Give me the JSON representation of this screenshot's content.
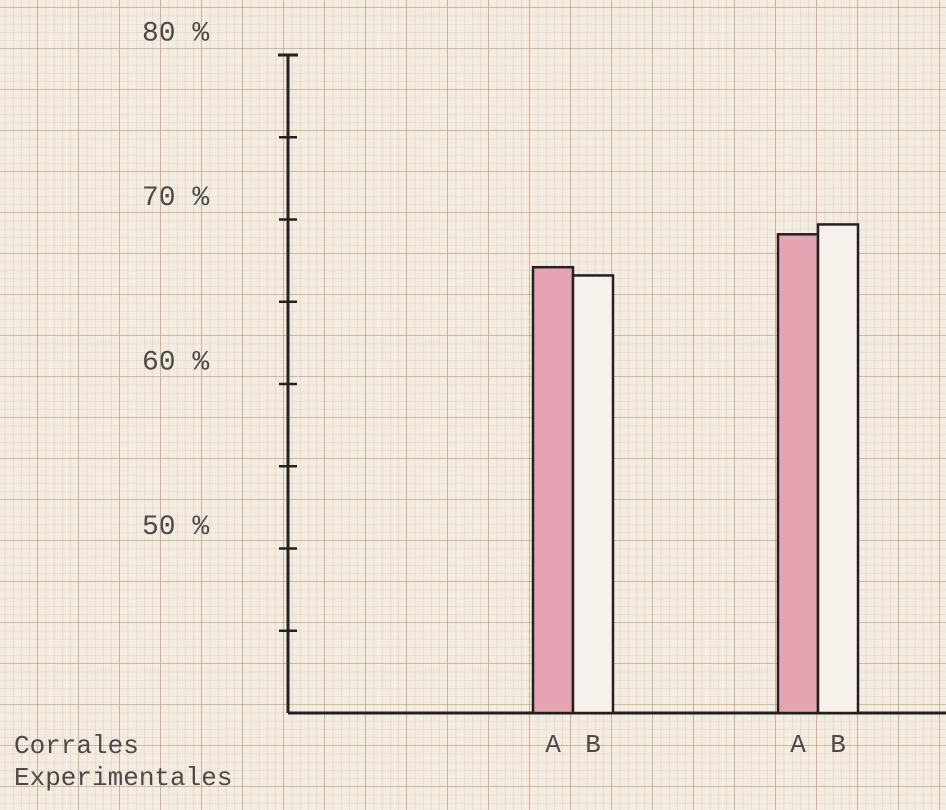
{
  "chart_data": {
    "type": "bar",
    "x_label": [
      "Corrales",
      "Experimentales"
    ],
    "categories": [
      null,
      null
    ],
    "series": [
      {
        "name": "A",
        "color": "#e6a3b2",
        "values": [
          67.1,
          69.1
        ]
      },
      {
        "name": "B",
        "color": "#f6f1ea",
        "values": [
          66.6,
          69.7
        ]
      }
    ],
    "ylim": [
      40,
      80
    ],
    "yticks": [
      {
        "value": 50,
        "label": "50 %"
      },
      {
        "value": 60,
        "label": "60 %"
      },
      {
        "value": 70,
        "label": "70 %"
      },
      {
        "value": 80,
        "label": "80 %"
      }
    ],
    "minor_yticks": [
      45,
      55,
      65,
      75
    ]
  }
}
